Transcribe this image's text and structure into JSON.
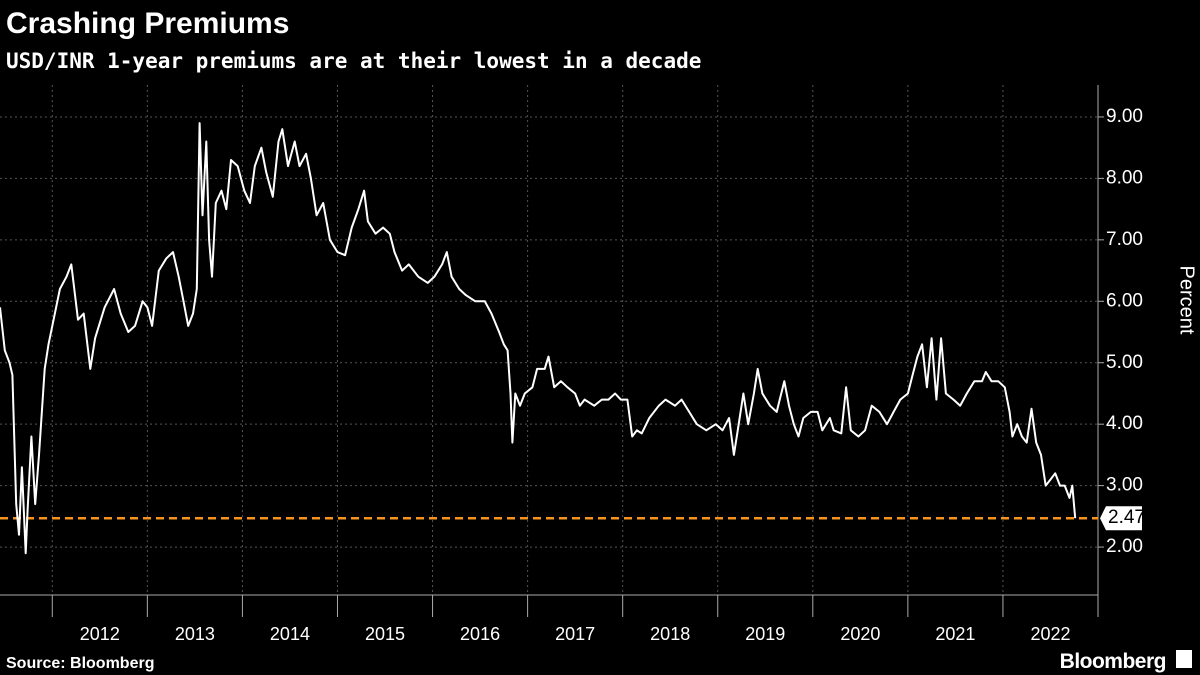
{
  "chart_data": {
    "type": "line",
    "title": "Crashing Premiums",
    "subtitle": "USD/INR 1-year premiums are at their lowest in a decade",
    "y_axis_label": "Percent",
    "source": "Source: Bloomberg",
    "brand": "Bloomberg",
    "color": "#ffffff",
    "x": [
      2011.45,
      2011.5,
      2011.55,
      2011.58,
      2011.62,
      2011.65,
      2011.68,
      2011.72,
      2011.74,
      2011.78,
      2011.82,
      2011.86,
      2011.92,
      2011.96,
      2012.0,
      2012.08,
      2012.15,
      2012.2,
      2012.27,
      2012.33,
      2012.4,
      2012.45,
      2012.55,
      2012.65,
      2012.72,
      2012.8,
      2012.87,
      2012.95,
      2013.0,
      2013.05,
      2013.12,
      2013.2,
      2013.27,
      2013.33,
      2013.38,
      2013.43,
      2013.48,
      2013.52,
      2013.55,
      2013.58,
      2013.62,
      2013.65,
      2013.68,
      2013.72,
      2013.78,
      2013.83,
      2013.88,
      2013.95,
      2014.02,
      2014.08,
      2014.13,
      2014.2,
      2014.25,
      2014.32,
      2014.38,
      2014.42,
      2014.48,
      2014.55,
      2014.6,
      2014.67,
      2014.72,
      2014.78,
      2014.85,
      2014.92,
      2015.0,
      2015.08,
      2015.15,
      2015.22,
      2015.28,
      2015.32,
      2015.4,
      2015.48,
      2015.55,
      2015.6,
      2015.68,
      2015.75,
      2015.85,
      2015.95,
      2016.02,
      2016.1,
      2016.15,
      2016.2,
      2016.28,
      2016.35,
      2016.45,
      2016.55,
      2016.62,
      2016.7,
      2016.75,
      2016.79,
      2016.82,
      2016.84,
      2016.87,
      2016.92,
      2016.97,
      2017.05,
      2017.1,
      2017.18,
      2017.22,
      2017.28,
      2017.35,
      2017.42,
      2017.5,
      2017.55,
      2017.6,
      2017.7,
      2017.78,
      2017.85,
      2017.92,
      2017.98,
      2018.05,
      2018.1,
      2018.15,
      2018.2,
      2018.28,
      2018.38,
      2018.45,
      2018.55,
      2018.62,
      2018.7,
      2018.78,
      2018.88,
      2018.98,
      2019.05,
      2019.12,
      2019.17,
      2019.22,
      2019.27,
      2019.32,
      2019.38,
      2019.42,
      2019.47,
      2019.55,
      2019.62,
      2019.7,
      2019.75,
      2019.8,
      2019.85,
      2019.9,
      2019.98,
      2020.05,
      2020.1,
      2020.18,
      2020.22,
      2020.3,
      2020.35,
      2020.4,
      2020.48,
      2020.55,
      2020.62,
      2020.7,
      2020.78,
      2020.85,
      2020.92,
      2021.0,
      2021.05,
      2021.1,
      2021.15,
      2021.2,
      2021.25,
      2021.3,
      2021.35,
      2021.4,
      2021.48,
      2021.55,
      2021.62,
      2021.7,
      2021.78,
      2021.82,
      2021.88,
      2021.95,
      2022.02,
      2022.07,
      2022.1,
      2022.15,
      2022.2,
      2022.25,
      2022.3,
      2022.35,
      2022.4,
      2022.45,
      2022.5,
      2022.55,
      2022.6,
      2022.65,
      2022.7,
      2022.73,
      2022.76
    ],
    "values": [
      5.9,
      5.2,
      5.0,
      4.8,
      2.7,
      2.2,
      3.3,
      1.9,
      2.6,
      3.8,
      2.7,
      3.5,
      4.9,
      5.3,
      5.6,
      6.2,
      6.4,
      6.6,
      5.7,
      5.8,
      4.9,
      5.4,
      5.9,
      6.2,
      5.8,
      5.5,
      5.6,
      6.0,
      5.9,
      5.6,
      6.5,
      6.7,
      6.8,
      6.4,
      6.0,
      5.6,
      5.8,
      6.2,
      8.9,
      7.4,
      8.6,
      7.0,
      6.4,
      7.6,
      7.8,
      7.5,
      8.3,
      8.2,
      7.8,
      7.6,
      8.2,
      8.5,
      8.1,
      7.7,
      8.6,
      8.8,
      8.2,
      8.6,
      8.2,
      8.4,
      8.0,
      7.4,
      7.6,
      7.0,
      6.8,
      6.75,
      7.2,
      7.5,
      7.8,
      7.3,
      7.1,
      7.2,
      7.1,
      6.8,
      6.5,
      6.6,
      6.4,
      6.3,
      6.4,
      6.6,
      6.8,
      6.4,
      6.2,
      6.1,
      6.0,
      6.0,
      5.8,
      5.5,
      5.3,
      5.2,
      4.5,
      3.7,
      4.5,
      4.3,
      4.5,
      4.6,
      4.9,
      4.9,
      5.1,
      4.6,
      4.7,
      4.6,
      4.5,
      4.3,
      4.4,
      4.3,
      4.4,
      4.4,
      4.5,
      4.4,
      4.4,
      3.8,
      3.9,
      3.85,
      4.1,
      4.3,
      4.4,
      4.3,
      4.4,
      4.2,
      4.0,
      3.9,
      4.0,
      3.9,
      4.1,
      3.5,
      4.0,
      4.5,
      4.0,
      4.5,
      4.9,
      4.5,
      4.3,
      4.2,
      4.7,
      4.3,
      4.0,
      3.8,
      4.1,
      4.2,
      4.2,
      3.9,
      4.1,
      3.9,
      3.85,
      4.6,
      3.9,
      3.8,
      3.9,
      4.3,
      4.2,
      4.0,
      4.2,
      4.4,
      4.5,
      4.8,
      5.1,
      5.3,
      4.6,
      5.4,
      4.4,
      5.4,
      4.5,
      4.4,
      4.3,
      4.5,
      4.7,
      4.7,
      4.85,
      4.7,
      4.7,
      4.6,
      4.2,
      3.8,
      4.0,
      3.8,
      3.7,
      4.25,
      3.7,
      3.5,
      3.0,
      3.1,
      3.2,
      3.0,
      3.0,
      2.8,
      3.0,
      2.47
    ],
    "reference_line": {
      "value": 2.47,
      "color": "#f7931e"
    },
    "xlim": [
      2011.45,
      2023.0
    ],
    "xticks": [
      2012,
      2013,
      2014,
      2015,
      2016,
      2017,
      2018,
      2019,
      2020,
      2021,
      2022
    ],
    "ylim": [
      1.22,
      9.52
    ],
    "yticks": [
      {
        "value": 2,
        "label": "2.00"
      },
      {
        "value": 3,
        "label": "3.00"
      },
      {
        "value": 4,
        "label": "4.00"
      },
      {
        "value": 5,
        "label": "5.00"
      },
      {
        "value": 6,
        "label": "6.00"
      },
      {
        "value": 7,
        "label": "7.00"
      },
      {
        "value": 8,
        "label": "8.00"
      },
      {
        "value": 9,
        "label": "9.00"
      }
    ],
    "grid": true
  }
}
